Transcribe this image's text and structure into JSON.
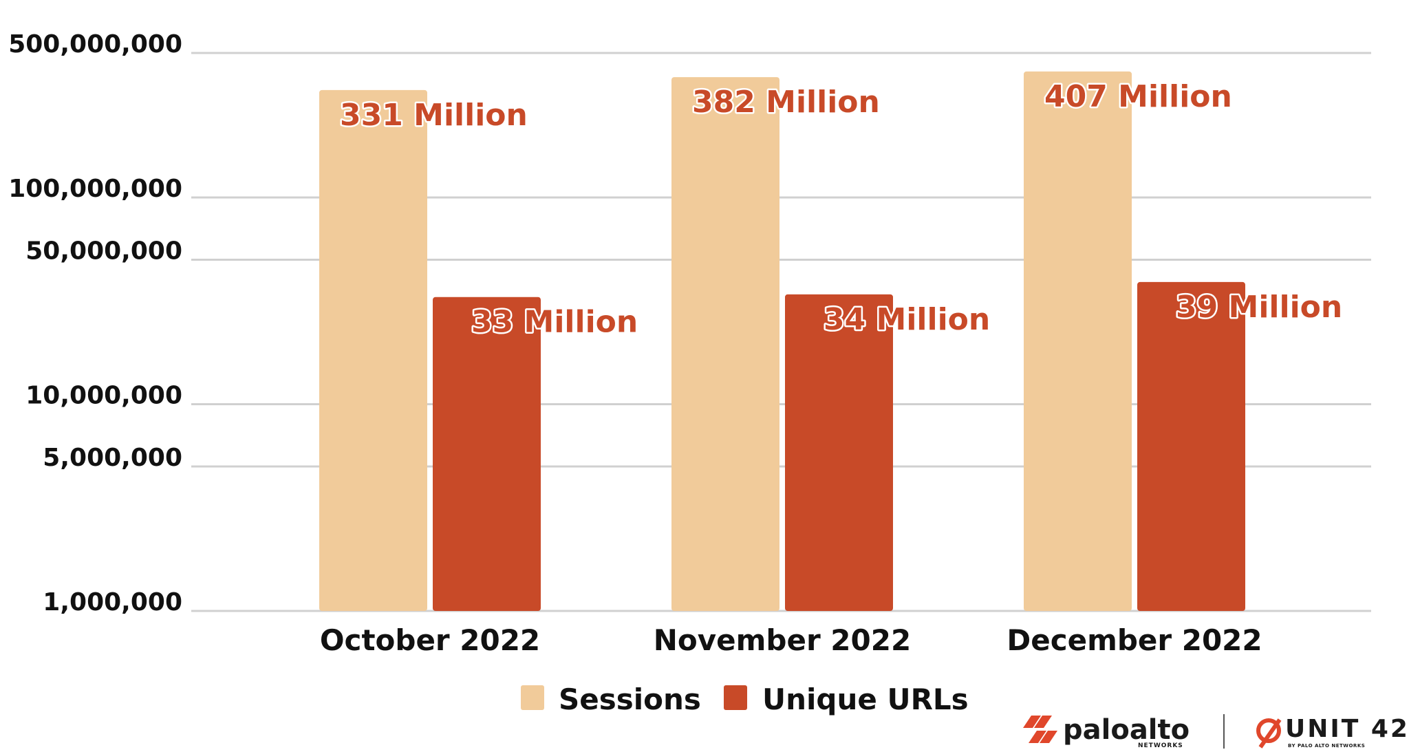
{
  "colors": {
    "sessions": "#f1cb9a",
    "unique_urls": "#c84a28",
    "label_text": "#c84a28",
    "logo_accent": "#e0472b"
  },
  "chart_data": {
    "type": "bar",
    "y_scale": "log",
    "ylim": [
      1000000,
      500000000
    ],
    "grid": true,
    "legend_position": "bottom",
    "y_ticks": [
      {
        "value": 500000000,
        "label": "500,000,000"
      },
      {
        "value": 100000000,
        "label": "100,000,000"
      },
      {
        "value": 50000000,
        "label": "50,000,000"
      },
      {
        "value": 10000000,
        "label": "10,000,000"
      },
      {
        "value": 5000000,
        "label": "5,000,000"
      },
      {
        "value": 1000000,
        "label": "1,000,000"
      }
    ],
    "categories": [
      "October 2022",
      "November 2022",
      "December 2022"
    ],
    "series": [
      {
        "name": "Sessions",
        "values": [
          331000000,
          382000000,
          407000000
        ],
        "labels": [
          "331 Million",
          "382 Million",
          "407 Million"
        ]
      },
      {
        "name": "Unique URLs",
        "values": [
          33000000,
          34000000,
          39000000
        ],
        "labels": [
          "33 Million",
          "34 Million",
          "39 Million"
        ]
      }
    ]
  },
  "branding": {
    "paloalto_name": "paloalto",
    "paloalto_sub": "NETWORKS",
    "paloalto_icon": "paloalto-chevrons-icon",
    "unit42_name": "UNIT 42",
    "unit42_sub": "BY PALO ALTO NETWORKS",
    "unit42_icon": "unit42-mark-icon"
  }
}
